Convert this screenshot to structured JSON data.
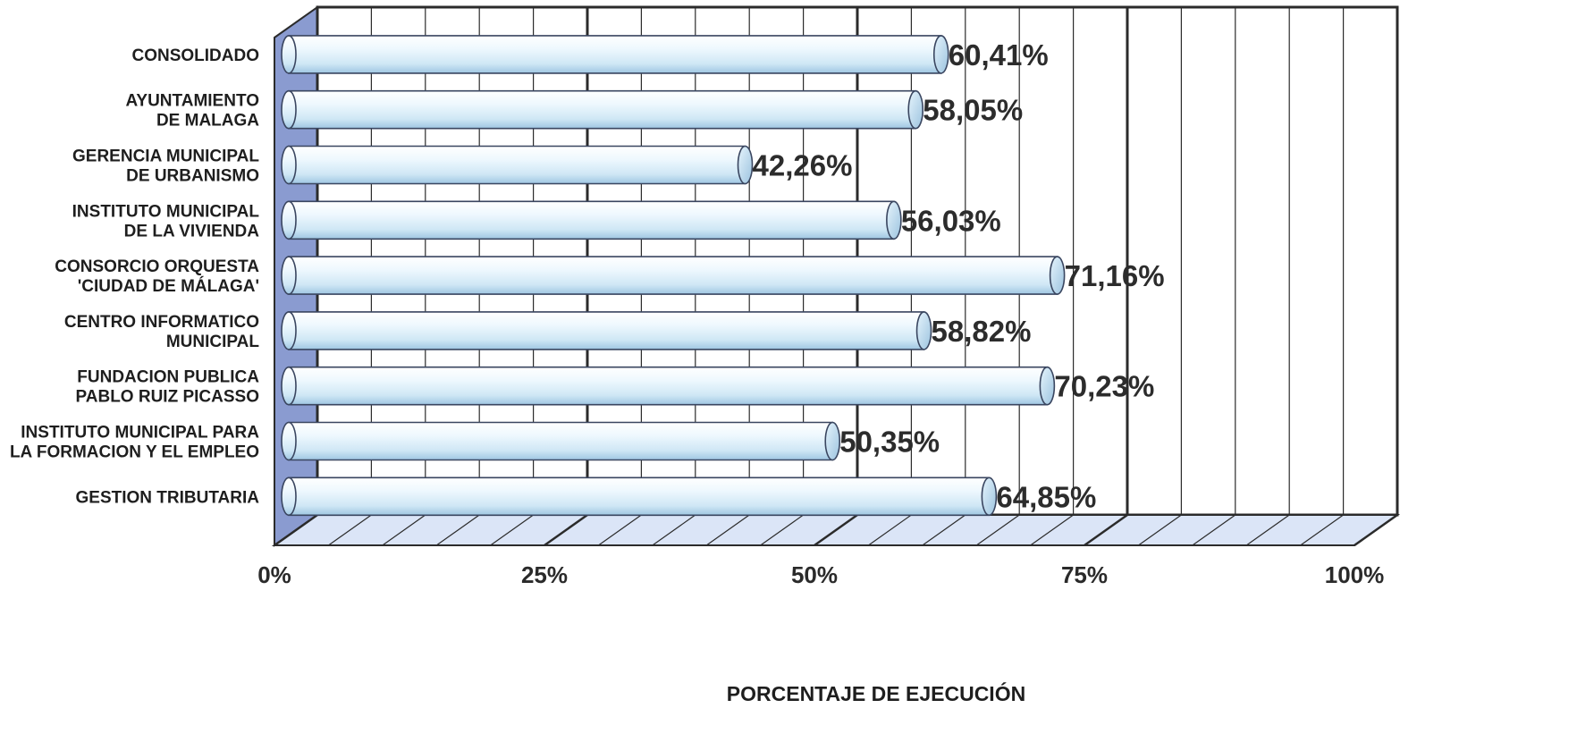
{
  "chart_data": {
    "type": "bar",
    "orientation": "horizontal",
    "style": "3d-cylinder",
    "categories": [
      [
        "CONSOLIDADO"
      ],
      [
        "AYUNTAMIENTO",
        "DE MALAGA"
      ],
      [
        "GERENCIA MUNICIPAL",
        "DE URBANISMO"
      ],
      [
        "INSTITUTO MUNICIPAL",
        "DE LA VIVIENDA"
      ],
      [
        "CONSORCIO ORQUESTA",
        "'CIUDAD DE MÁLAGA'"
      ],
      [
        "CENTRO INFORMATICO",
        "MUNICIPAL"
      ],
      [
        "FUNDACION PUBLICA",
        "PABLO RUIZ PICASSO"
      ],
      [
        "INSTITUTO MUNICIPAL PARA",
        "LA FORMACION Y EL EMPLEO"
      ],
      [
        "GESTION TRIBUTARIA"
      ]
    ],
    "values": [
      60.41,
      58.05,
      42.26,
      56.03,
      71.16,
      58.82,
      70.23,
      50.35,
      64.85
    ],
    "data_labels": [
      "60,41%",
      "58,05%",
      "42,26%",
      "56,03%",
      "71,16%",
      "58,82%",
      "70,23%",
      "50,35%",
      "64,85%"
    ],
    "xlim": [
      0,
      100
    ],
    "xticks": [
      0,
      25,
      50,
      75,
      100
    ],
    "xtick_labels": [
      "0%",
      "25%",
      "50%",
      "75%",
      "100%"
    ],
    "xlabel": "PORCENTAJE DE EJECUCIÓN",
    "ylabel": "",
    "title": "",
    "grid": true,
    "legend": "none",
    "colors": {
      "bar_light": "#f4fbff",
      "bar_mid": "#d7ecf7",
      "bar_dark": "#a9cde6",
      "bar_end": "#bcdcf0",
      "bar_stroke": "#3a4660",
      "side_wall": "#8a9bd0",
      "floor": "#dbe5f7",
      "grid": "#2b2b2b"
    }
  }
}
